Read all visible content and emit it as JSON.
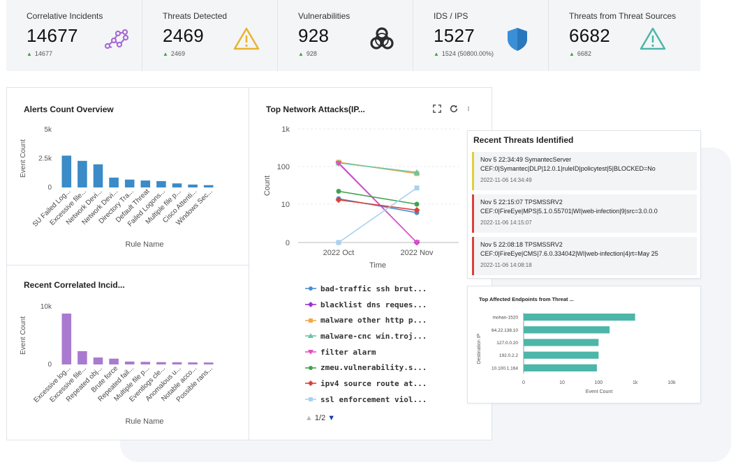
{
  "stats": [
    {
      "label": "Correlative Incidents",
      "value": "14677",
      "trend": "14677",
      "icon": "molecule-icon"
    },
    {
      "label": "Threats Detected",
      "value": "2469",
      "trend": "2469",
      "icon": "warning-icon"
    },
    {
      "label": "Vulnerabilities",
      "value": "928",
      "trend": "928",
      "icon": "biohazard-icon"
    },
    {
      "label": "IDS / IPS",
      "value": "1527",
      "trend": "1524 (50800.00%)",
      "icon": "shield-icon"
    },
    {
      "label": "Threats from Threat Sources",
      "value": "6682",
      "trend": "6682",
      "icon": "warning-outline-icon"
    }
  ],
  "colors": {
    "bar_blue": "#3a8bc7",
    "bar_purple": "#a97ad0",
    "bar_teal": "#4cb6a8",
    "up": "#3aa33a"
  },
  "alerts_panel": {
    "title": "Alerts Count Overview",
    "ylabel": "Event Count",
    "xlabel": "Rule Name"
  },
  "correlated_panel": {
    "title": "Recent Correlated Incid...",
    "ylabel": "Event Count",
    "xlabel": "Rule Name"
  },
  "attacks_panel": {
    "title": "Top Network Attacks(IP...",
    "ylabel": "Count",
    "xlabel": "Time",
    "pager": "1/2"
  },
  "threats_panel": {
    "title": "Recent Threats Identified",
    "items": [
      {
        "head": "Nov 5 22:34:49 SymantecServer",
        "body": "CEF:0|Symantec|DLP|12.0.1|ruleID|policytest|5|BLOCKED=No",
        "time": "2022-11-06 14:34:49",
        "color": "#e0cf3a"
      },
      {
        "head": "Nov 5 22:15:07 TPSMSSRV2",
        "body": "CEF:0|FireEye|MPS|5.1.0.55701|WI|web-infection|9|src=3.0.0.0",
        "time": "2022-11-06 14:15:07",
        "color": "#d9413a"
      },
      {
        "head": "Nov 5 22:08:18 TPSMSSRV2",
        "body": "CEF:0|FireEye|CMS|7.6.0.334042|WI|web-infection|4|rt=May 25",
        "time": "2022-11-06 14:08:18",
        "color": "#d9413a"
      }
    ]
  },
  "endpoints_panel": {
    "title": "Top Affected Endpoints from Threat ...",
    "ylabel": "Destination IP",
    "xlabel": "Event Count"
  },
  "chart_data": [
    {
      "type": "bar",
      "title": "Alerts Count Overview",
      "xlabel": "Rule Name",
      "ylabel": "Event Count",
      "ylim": [
        0,
        5000
      ],
      "yticks": [
        "0",
        "2.5k",
        "5k"
      ],
      "categories": [
        "SU Failed Log...",
        "Excessive file...",
        "Network Devi...",
        "Network Devi...",
        "Directory Tra...",
        "Default Threat",
        "Failed Logons...",
        "Multiple file p...",
        "Cisco Attenti...",
        "Windows Sec..."
      ],
      "values": [
        2750,
        2300,
        2000,
        850,
        680,
        600,
        550,
        350,
        250,
        200
      ]
    },
    {
      "type": "bar",
      "title": "Recent Correlated Incid...",
      "xlabel": "Rule Name",
      "ylabel": "Event Count",
      "ylim": [
        0,
        10000
      ],
      "yticks": [
        "0",
        "10k"
      ],
      "categories": [
        "Excessive log...",
        "Excessive file...",
        "Repeated obj...",
        "Brute force",
        "Repeated fail...",
        "Multiple file p...",
        "Eventlogs cle...",
        "Anomalous u...",
        "Notable acco...",
        "Possible rans..."
      ],
      "values": [
        8800,
        2300,
        1200,
        1000,
        500,
        450,
        400,
        380,
        350,
        340
      ]
    },
    {
      "type": "line",
      "title": "Top Network Attacks(IP...",
      "xlabel": "Time",
      "ylabel": "Count",
      "yscale": "log",
      "yticks": [
        "0",
        "10",
        "100",
        "1k"
      ],
      "categories": [
        "2022 Oct",
        "2022 Nov"
      ],
      "series": [
        {
          "name": "bad-traffic ssh brut...",
          "color": "#4a8fd0",
          "marker": "circle",
          "values": [
            14,
            6
          ]
        },
        {
          "name": "blacklist dns reques...",
          "color": "#9b33cf",
          "marker": "diamond",
          "values": [
            125,
            0
          ]
        },
        {
          "name": "malware other http p...",
          "color": "#f0a94a",
          "marker": "square",
          "values": [
            130,
            65
          ]
        },
        {
          "name": "malware-cnc win.troj...",
          "color": "#68c6a4",
          "marker": "triangle",
          "values": [
            125,
            70
          ]
        },
        {
          "name": "filter alarm",
          "color": "#e04fc2",
          "marker": "triangle-down",
          "values": [
            120,
            0
          ]
        },
        {
          "name": "zmeu.vulnerability.s...",
          "color": "#3fa34d",
          "marker": "circle",
          "values": [
            22,
            10
          ]
        },
        {
          "name": "ipv4 source route at...",
          "color": "#d9413a",
          "marker": "diamond",
          "values": [
            13,
            7
          ]
        },
        {
          "name": "ssl enforcement viol...",
          "color": "#a8d1f0",
          "marker": "square",
          "values": [
            0,
            27
          ]
        }
      ]
    },
    {
      "type": "bar",
      "orientation": "horizontal",
      "title": "Top Affected Endpoints from Threat ...",
      "xlabel": "Event Count",
      "ylabel": "Destination IP",
      "xscale": "log",
      "xticks": [
        "0",
        "10",
        "100",
        "1k",
        "10k"
      ],
      "categories": [
        "mohan-1520",
        "64.22.138.10",
        "127.0.0.20",
        "192.0.2.2",
        "10.100.1.164"
      ],
      "values": [
        1000,
        200,
        100,
        100,
        90
      ]
    }
  ]
}
